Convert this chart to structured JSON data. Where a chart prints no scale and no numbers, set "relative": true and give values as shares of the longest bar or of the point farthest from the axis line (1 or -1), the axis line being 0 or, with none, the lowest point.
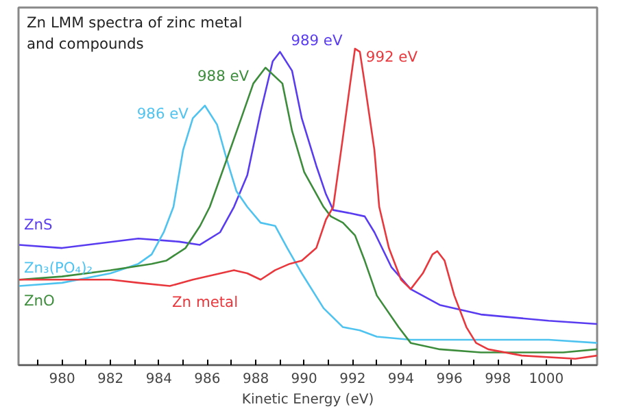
{
  "chart_data": {
    "type": "line",
    "title": "Zn LMM spectra of zinc metal\nand compounds",
    "xlabel": "Kinetic Energy (eV)",
    "relative": true,
    "grid": false,
    "marker": "none",
    "line_style": "solid",
    "xlim": [
      978.2,
      1002.1
    ],
    "xticks": [
      {
        "value": 979,
        "label": null
      },
      980,
      {
        "value": 981,
        "label": null
      },
      982,
      {
        "value": 983,
        "label": null
      },
      984,
      {
        "value": 985,
        "label": null
      },
      986,
      {
        "value": 987,
        "label": null
      },
      988,
      {
        "value": 989,
        "label": null
      },
      990,
      {
        "value": 991,
        "label": null
      },
      992,
      {
        "value": 993,
        "label": null
      },
      994,
      {
        "value": 995,
        "label": null
      },
      996,
      {
        "value": 997,
        "label": null
      },
      998,
      {
        "value": 999,
        "label": null
      },
      1000,
      {
        "value": 1001,
        "label": null
      }
    ],
    "series": [
      {
        "name": "ZnS",
        "color": "#5a3cf0",
        "x": [
          978.23,
          980.0,
          983.15,
          984.84,
          985.69,
          986.53,
          987.1,
          987.65,
          988.2,
          988.7,
          989.0,
          989.5,
          989.9,
          990.5,
          990.9,
          991.2,
          991.9,
          992.5,
          992.9,
          993.6,
          994.4,
          995.6,
          997.3,
          1000.1,
          1002.1
        ],
        "values": [
          0.38,
          0.37,
          0.4,
          0.39,
          0.38,
          0.42,
          0.5,
          0.6,
          0.8,
          0.96,
          0.99,
          0.93,
          0.78,
          0.63,
          0.54,
          0.49,
          0.48,
          0.47,
          0.42,
          0.31,
          0.24,
          0.19,
          0.16,
          0.14,
          0.13
        ]
      },
      {
        "name": "Zn₃(PO₄)₂",
        "color": "#4fc3f0",
        "x": [
          978.23,
          980.0,
          982.0,
          983.15,
          983.7,
          984.2,
          984.6,
          985.0,
          985.4,
          985.9,
          986.4,
          986.8,
          987.2,
          987.65,
          988.2,
          988.8,
          989.3,
          989.9,
          990.8,
          991.6,
          992.3,
          993.0,
          994.4,
          997.3,
          1000.1,
          1002.1
        ],
        "values": [
          0.25,
          0.26,
          0.29,
          0.32,
          0.35,
          0.42,
          0.5,
          0.68,
          0.78,
          0.82,
          0.76,
          0.65,
          0.55,
          0.5,
          0.45,
          0.44,
          0.37,
          0.29,
          0.18,
          0.12,
          0.11,
          0.09,
          0.08,
          0.08,
          0.08,
          0.07
        ]
      },
      {
        "name": "ZnO",
        "color": "#3c8c3c",
        "x": [
          978.23,
          980.0,
          982.0,
          983.7,
          984.3,
          985.1,
          985.7,
          986.1,
          986.8,
          987.4,
          987.9,
          988.4,
          989.1,
          989.5,
          990.0,
          990.8,
          991.1,
          991.6,
          992.1,
          992.5,
          993.0,
          993.9,
          994.4,
          995.6,
          997.3,
          1000.7,
          1002.1
        ],
        "values": [
          0.27,
          0.28,
          0.3,
          0.32,
          0.33,
          0.37,
          0.44,
          0.5,
          0.65,
          0.78,
          0.89,
          0.94,
          0.89,
          0.74,
          0.61,
          0.5,
          0.47,
          0.45,
          0.41,
          0.33,
          0.22,
          0.12,
          0.07,
          0.05,
          0.04,
          0.04,
          0.05
        ]
      },
      {
        "name": "Zn metal",
        "color": "#e8383d",
        "x": [
          978.23,
          980.0,
          982.0,
          983.15,
          984.45,
          985.4,
          987.1,
          987.65,
          988.2,
          988.8,
          989.4,
          989.9,
          990.5,
          990.9,
          991.2,
          991.6,
          991.9,
          992.1,
          992.3,
          992.5,
          992.9,
          993.1,
          993.5,
          994.0,
          994.4,
          994.9,
          995.3,
          995.5,
          995.8,
          996.2,
          996.7,
          997.1,
          997.6,
          999.0,
          1001.2,
          1002.1
        ],
        "values": [
          0.27,
          0.27,
          0.27,
          0.26,
          0.25,
          0.27,
          0.3,
          0.29,
          0.27,
          0.3,
          0.32,
          0.33,
          0.37,
          0.46,
          0.5,
          0.72,
          0.89,
          1.0,
          0.99,
          0.89,
          0.68,
          0.5,
          0.37,
          0.27,
          0.24,
          0.29,
          0.35,
          0.36,
          0.33,
          0.22,
          0.12,
          0.07,
          0.05,
          0.03,
          0.02,
          0.03
        ]
      }
    ],
    "annotations": [
      {
        "text": "986 eV",
        "x": 985.9,
        "y": 0.82
      },
      {
        "text": "988 eV",
        "x": 988.4,
        "y": 0.94
      },
      {
        "text": "989 eV",
        "x": 989.0,
        "y": 0.99
      },
      {
        "text": "992 eV",
        "x": 992.1,
        "y": 1.0
      }
    ]
  }
}
